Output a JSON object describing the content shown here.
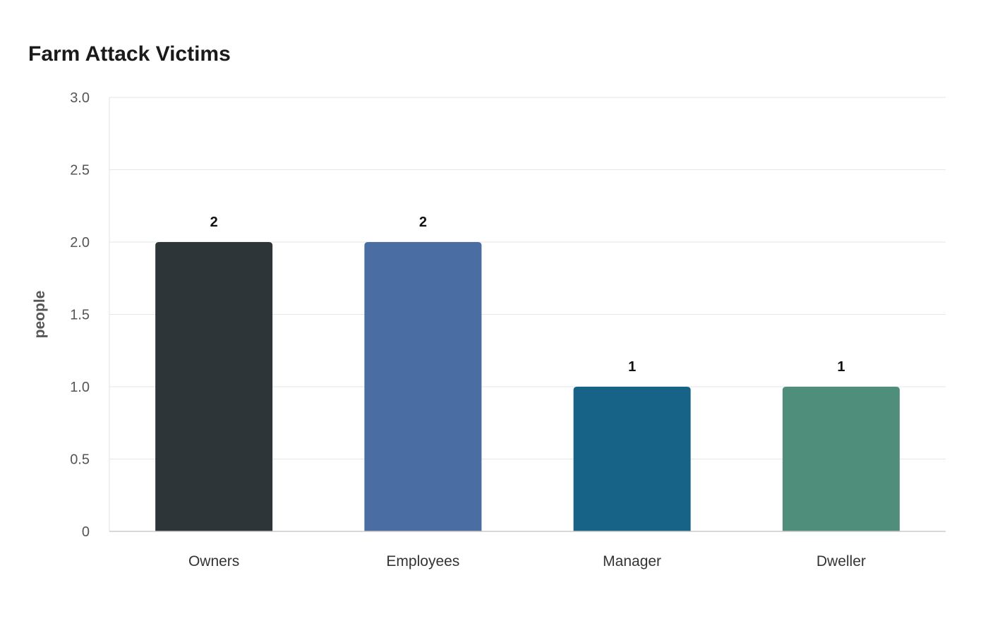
{
  "chart_data": {
    "type": "bar",
    "title": "Farm Attack Victims",
    "xlabel": "",
    "ylabel": "people",
    "categories": [
      "Owners",
      "Employees",
      "Manager",
      "Dweller"
    ],
    "values": [
      2,
      2,
      1,
      1
    ],
    "value_labels": [
      "2",
      "2",
      "1",
      "1"
    ],
    "colors": [
      "#2e3538",
      "#4a6ea3",
      "#176287",
      "#4e8e7b"
    ],
    "ylim": [
      0,
      3
    ],
    "yticks": [
      0,
      0.5,
      1,
      1.5,
      2,
      2.5,
      3
    ],
    "ytick_labels": [
      "0",
      "0.5",
      "1.0",
      "1.5",
      "2.0",
      "2.5",
      "3.0"
    ],
    "grid": true,
    "legend": "none"
  }
}
